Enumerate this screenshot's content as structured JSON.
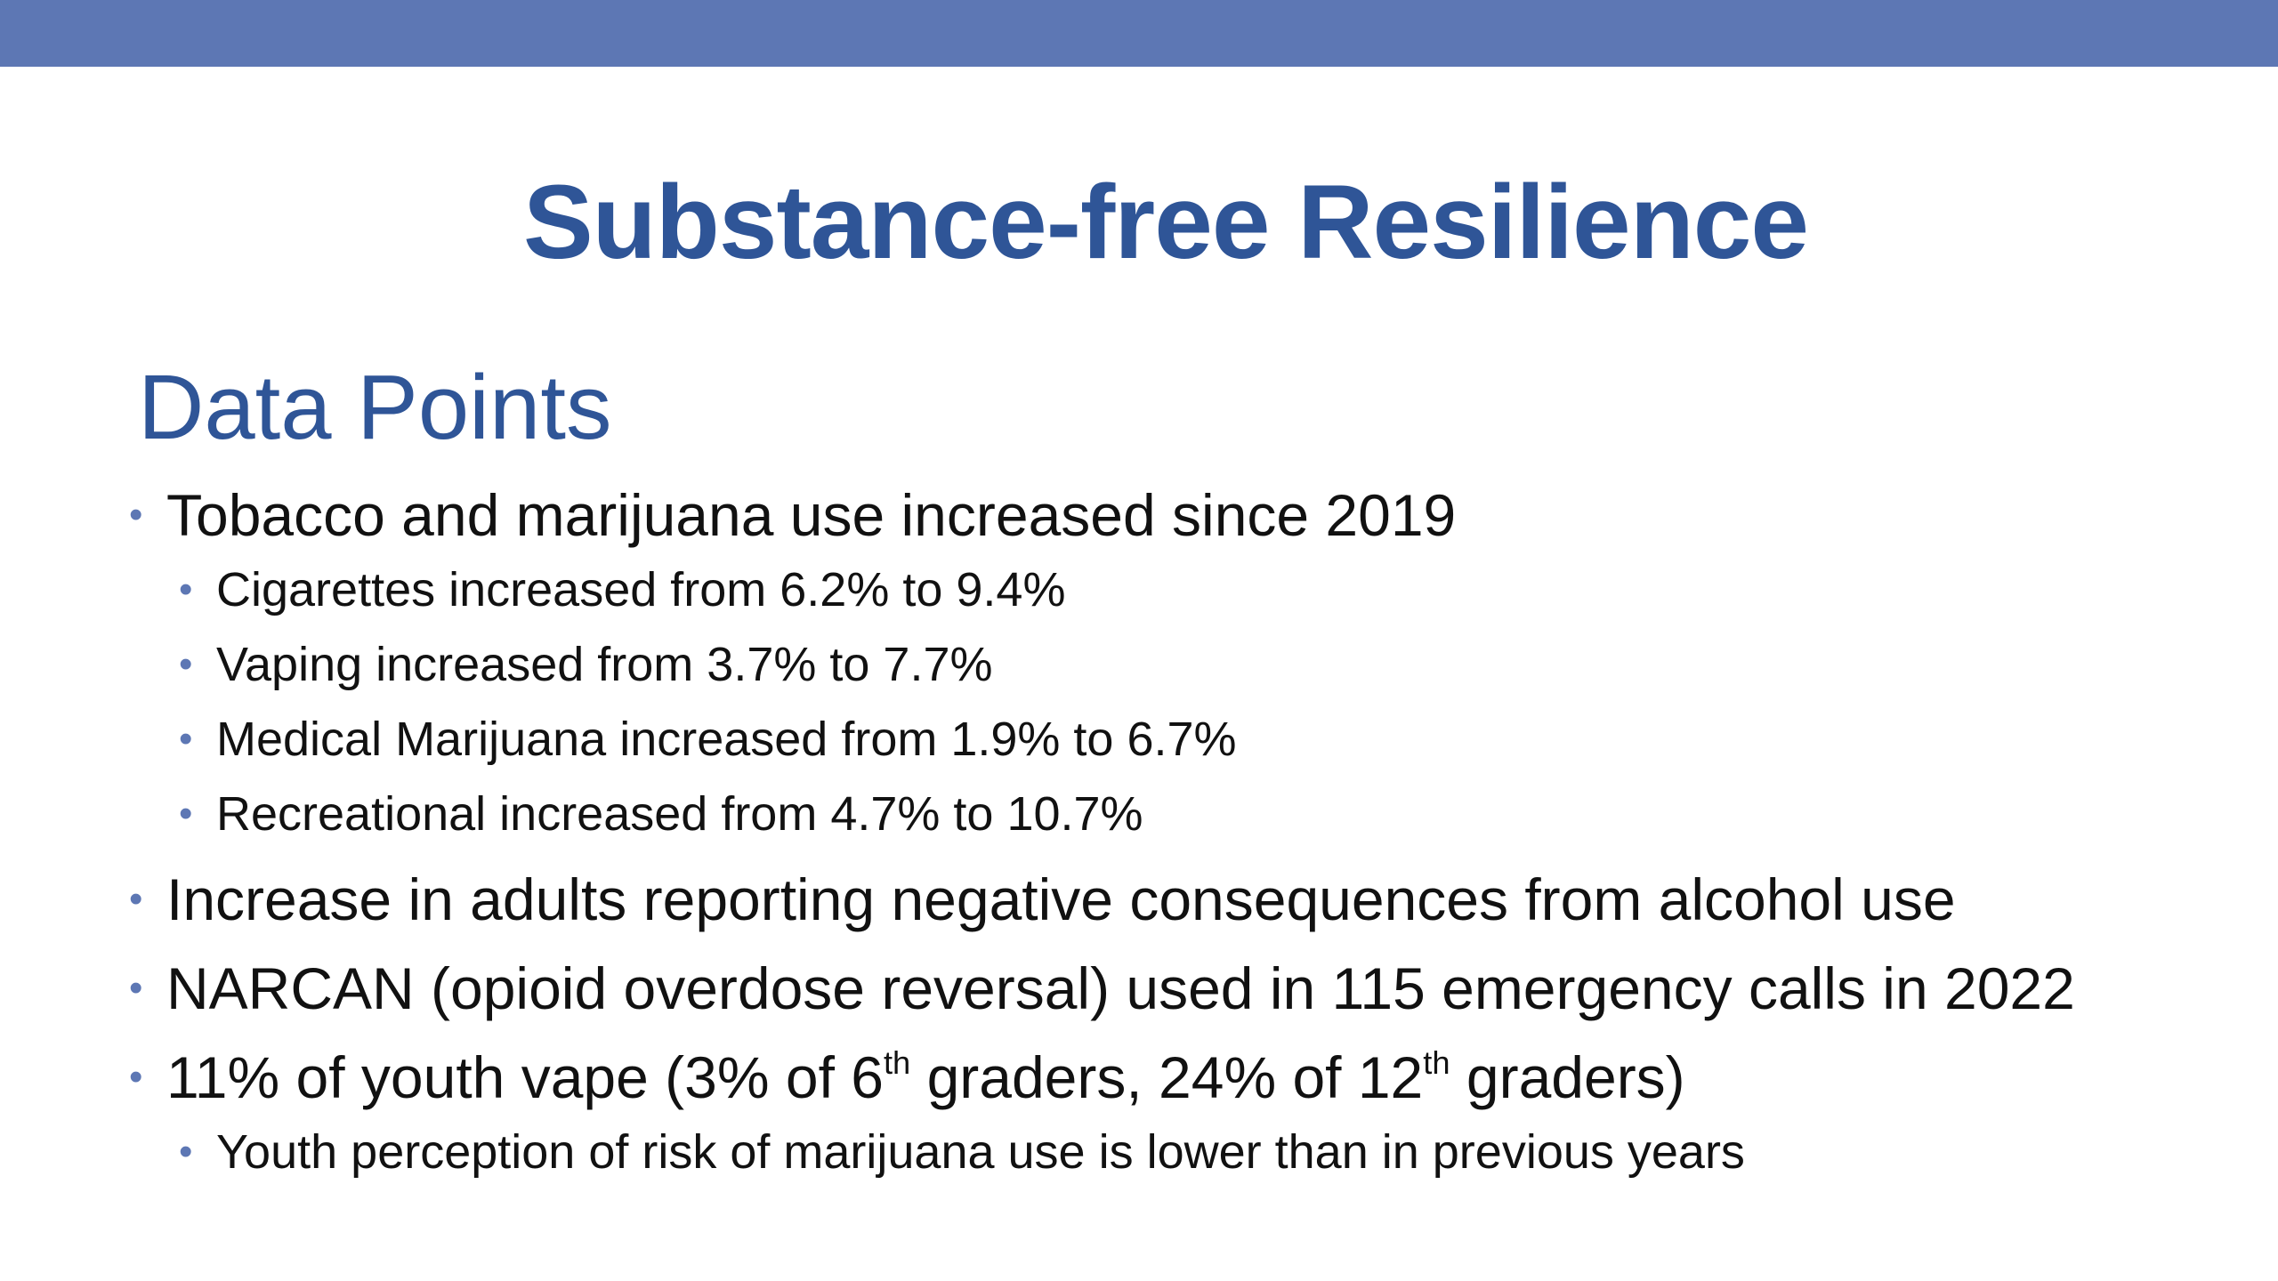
{
  "slide": {
    "title": "Substance-free Resilience",
    "subtitle": "Data Points",
    "colors": {
      "top_bar": "#5d77b4",
      "title": "#2f5597",
      "bullet": "#5d77b4",
      "text": "#111111"
    },
    "bullets": {
      "tobacco": {
        "text": "Tobacco and marijuana use increased since 2019",
        "subs": [
          "Cigarettes increased from 6.2% to 9.4%",
          "Vaping increased from 3.7% to 7.7%",
          "Medical Marijuana increased from 1.9% to 6.7%",
          "Recreational increased from 4.7% to 10.7%"
        ]
      },
      "alcohol": "Increase in adults reporting negative consequences from alcohol use",
      "narcan": "NARCAN (opioid overdose reversal) used in 115 emergency calls in 2022",
      "youth": {
        "part1": "11% of youth vape (3% of 6",
        "sup1": "th",
        "part2": " graders, 24% of 12",
        "sup2": "th",
        "part3": " graders)",
        "subs": [
          "Youth perception of risk of marijuana use is lower than in previous years"
        ]
      }
    }
  }
}
